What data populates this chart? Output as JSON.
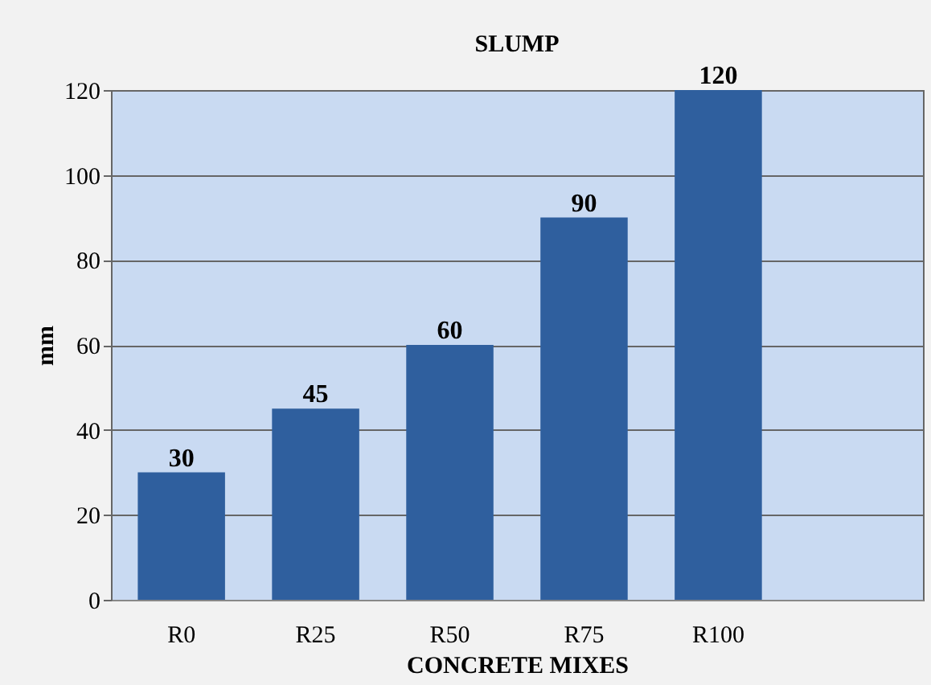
{
  "chart_data": {
    "type": "bar",
    "title": "SLUMP",
    "xlabel": "CONCRETE MIXES",
    "ylabel": "mm",
    "categories": [
      "R0",
      "R25",
      "R50",
      "R75",
      "R100",
      null
    ],
    "values": [
      30,
      45,
      60,
      90,
      120,
      null
    ],
    "color": "#2f5f9e",
    "ylim": [
      0,
      120
    ],
    "yticks": [
      0,
      20,
      40,
      60,
      80,
      100,
      120
    ],
    "grid": "y",
    "data_labels": true
  }
}
